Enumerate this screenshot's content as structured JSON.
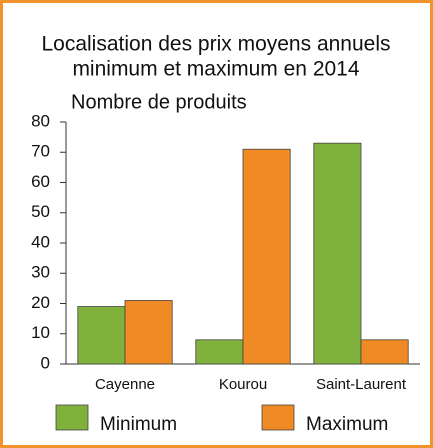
{
  "chart_data": {
    "type": "bar",
    "title": [
      "Localisation des prix moyens annuels",
      "minimum et maximum en 2014"
    ],
    "y_label": "Nombre de produits",
    "categories": [
      "Cayenne",
      "Kourou",
      "Saint-Laurent"
    ],
    "series": [
      {
        "name": "Minimum",
        "color": "#7fb13c",
        "values": [
          19,
          8,
          73
        ]
      },
      {
        "name": "Maximum",
        "color": "#f08a24",
        "values": [
          21,
          71,
          8
        ]
      }
    ],
    "ylim": [
      0,
      80
    ],
    "yticks": [
      0,
      10,
      20,
      30,
      40,
      50,
      60,
      70,
      80
    ],
    "grid": false,
    "legend": "bottom"
  }
}
